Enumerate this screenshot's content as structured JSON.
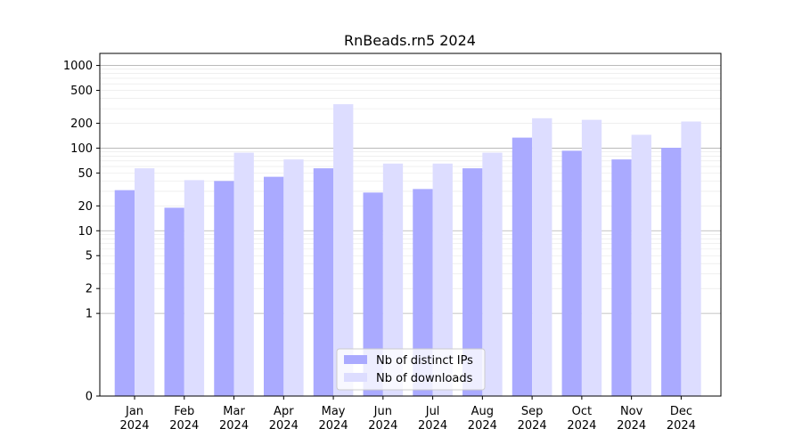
{
  "chart_data": {
    "type": "bar",
    "title": "RnBeads.rn5 2024",
    "xlabel": "",
    "ylabel": "",
    "y_scale": "symlog",
    "ylim": [
      0,
      1400
    ],
    "y_ticks": [
      0,
      1,
      2,
      5,
      10,
      20,
      50,
      100,
      200,
      500,
      1000
    ],
    "y_tick_labels": [
      "0",
      "1",
      "2",
      "5",
      "10",
      "20",
      "50",
      "100",
      "200",
      "500",
      "1000"
    ],
    "categories": [
      "Jan\n2024",
      "Feb\n2024",
      "Mar\n2024",
      "Apr\n2024",
      "May\n2024",
      "Jun\n2024",
      "Jul\n2024",
      "Aug\n2024",
      "Sep\n2024",
      "Oct\n2024",
      "Nov\n2024",
      "Dec\n2024"
    ],
    "series": [
      {
        "name": "Nb of distinct IPs",
        "color": "#aaaaff",
        "values": [
          31,
          19,
          40,
          45,
          57,
          29,
          32,
          57,
          134,
          93,
          73,
          101
        ]
      },
      {
        "name": "Nb of downloads",
        "color": "#ddddff",
        "values": [
          57,
          41,
          88,
          73,
          340,
          65,
          65,
          88,
          230,
          220,
          145,
          210
        ]
      }
    ],
    "grid": true,
    "legend_position": "lower center"
  }
}
